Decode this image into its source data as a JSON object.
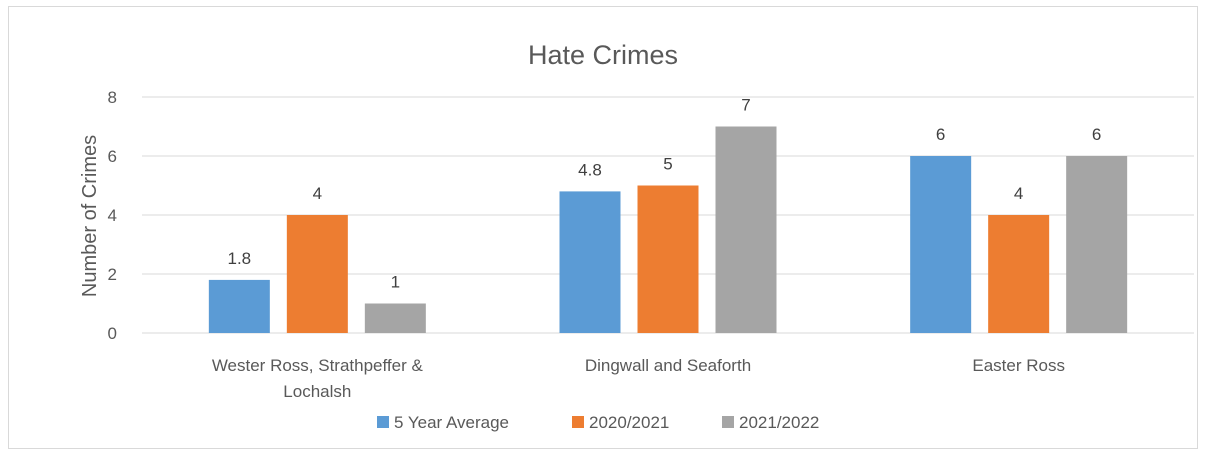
{
  "chart_data": {
    "type": "bar",
    "title": "Hate Crimes",
    "xlabel": "",
    "ylabel": "Number of Crimes",
    "ylim": [
      0,
      8
    ],
    "yticks": [
      0,
      2,
      4,
      6,
      8
    ],
    "categories": [
      [
        "Wester Ross, Strathpeffer &",
        "Lochalsh"
      ],
      [
        "Dingwall and Seaforth"
      ],
      [
        "Easter Ross"
      ]
    ],
    "series": [
      {
        "name": "5 Year Average",
        "values": [
          1.8,
          4.8,
          6
        ],
        "labels": [
          "1.8",
          "4.8",
          "6"
        ],
        "color": "#5b9bd5"
      },
      {
        "name": "2020/2021",
        "values": [
          4,
          5,
          4
        ],
        "labels": [
          "4",
          "5",
          "4"
        ],
        "color": "#ed7d31"
      },
      {
        "name": "2021/2022",
        "values": [
          1,
          7,
          6
        ],
        "labels": [
          "1",
          "7",
          "6"
        ],
        "color": "#a5a5a5"
      }
    ],
    "grid": true,
    "legend_position": "bottom"
  }
}
